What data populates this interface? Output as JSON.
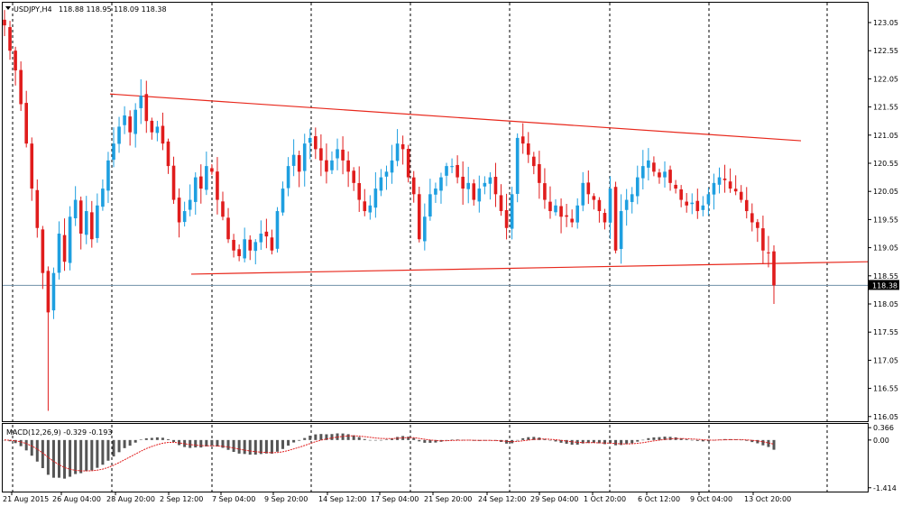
{
  "header": {
    "symbol": "USDJPY,H4",
    "ohlc": "118.88 118.95 118.09 118.38"
  },
  "macd_label": "MACD(12,26,9) -0.329 -0.193",
  "current_price_label": "118.38",
  "colors": {
    "bull": "#1e9fe0",
    "bear": "#e01c1c",
    "trendline": "#e8281c",
    "price_line": "#7090a8",
    "signal": "#e01c1c",
    "histogram": "#555555"
  },
  "chart_data": [
    {
      "type": "candlestick",
      "title": "USDJPY,H4",
      "ylim": [
        116.0,
        123.2
      ],
      "y_ticks": [
        "123.05",
        "122.55",
        "122.05",
        "121.55",
        "121.05",
        "120.55",
        "120.05",
        "119.55",
        "119.05",
        "118.55",
        "118.05",
        "117.55",
        "117.05",
        "116.55",
        "116.05"
      ],
      "x_ticks": [
        "21 Aug 2015",
        "26 Aug 04:00",
        "28 Aug 20:00",
        "2 Sep 12:00",
        "7 Sep 04:00",
        "9 Sep 20:00",
        "14 Sep 12:00",
        "17 Sep 04:00",
        "21 Sep 20:00",
        "24 Sep 12:00",
        "29 Sep 04:00",
        "1 Oct 20:00",
        "6 Oct 12:00",
        "9 Oct 04:00",
        "13 Oct 20:00"
      ],
      "current_price": 118.38,
      "trendlines": [
        {
          "name": "upper",
          "from": [
            122,
            121.78
          ],
          "to": [
            888,
            120.95
          ]
        },
        {
          "name": "lower",
          "from": [
            212,
            118.58
          ],
          "to": [
            962,
            118.8
          ]
        }
      ],
      "closes": [
        123.0,
        122.55,
        122.2,
        121.6,
        120.9,
        120.1,
        119.4,
        118.6,
        117.9,
        118.6,
        119.3,
        118.8,
        119.6,
        119.9,
        119.3,
        119.7,
        119.2,
        119.8,
        120.1,
        120.6,
        120.9,
        121.2,
        121.4,
        121.1,
        121.5,
        121.75,
        121.3,
        121.1,
        121.2,
        120.9,
        120.5,
        119.9,
        119.5,
        119.7,
        119.9,
        120.3,
        120.1,
        120.5,
        120.4,
        119.9,
        119.6,
        119.2,
        119.0,
        118.9,
        119.2,
        119.0,
        119.15,
        119.3,
        119.25,
        119.0,
        119.7,
        120.1,
        120.5,
        120.7,
        120.4,
        120.9,
        121.0,
        120.8,
        120.6,
        120.4,
        120.6,
        120.8,
        120.6,
        120.4,
        120.2,
        119.9,
        119.7,
        119.8,
        120.1,
        120.3,
        120.4,
        120.6,
        120.9,
        120.8,
        120.3,
        120.0,
        119.2,
        119.6,
        120.0,
        120.1,
        120.3,
        120.5,
        120.5,
        120.3,
        120.1,
        120.2,
        119.9,
        120.1,
        120.2,
        120.3,
        120.0,
        119.7,
        119.4,
        120.0,
        121.0,
        120.9,
        120.7,
        120.5,
        120.2,
        119.9,
        119.7,
        119.8,
        119.6,
        119.6,
        119.5,
        119.8,
        120.2,
        120.0,
        119.9,
        119.7,
        119.5,
        120.1,
        119.0,
        119.7,
        119.9,
        120.0,
        120.3,
        120.5,
        120.6,
        120.4,
        120.3,
        120.4,
        120.2,
        120.1,
        119.9,
        119.8,
        119.85,
        119.7,
        119.8,
        120.0,
        120.2,
        120.3,
        120.25,
        120.1,
        120.05,
        119.9,
        119.7,
        119.5,
        119.4,
        119.0,
        118.95,
        118.38
      ]
    },
    {
      "type": "bar",
      "title": "MACD(12,26,9)",
      "ylim": [
        -1.5,
        0.45
      ],
      "y_ticks": [
        "0.366",
        "0.00",
        "-1.414"
      ],
      "macd_value": -0.329,
      "signal_value": -0.193
    }
  ]
}
